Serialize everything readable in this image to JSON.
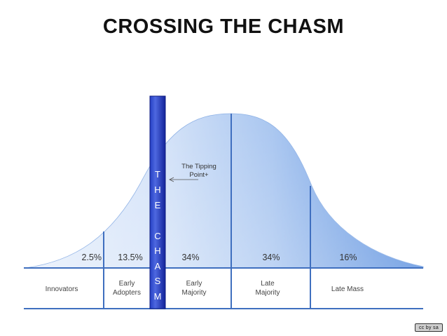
{
  "title": "CROSSING THE CHASM",
  "tipping_point": {
    "line1": "The Tipping",
    "line2": "Point+"
  },
  "chasm_letters": [
    "T",
    "H",
    "E",
    "C",
    "H",
    "A",
    "S",
    "M"
  ],
  "segments": [
    {
      "pct": "2.5%",
      "label_lines": [
        "Innovators"
      ]
    },
    {
      "pct": "13.5%",
      "label_lines": [
        "Early",
        "Adopters"
      ]
    },
    {
      "pct": "34%",
      "label_lines": [
        "Early",
        "Majority"
      ]
    },
    {
      "pct": "34%",
      "label_lines": [
        "Late",
        "Majority"
      ]
    },
    {
      "pct": "16%",
      "label_lines": [
        "Late Mass"
      ]
    }
  ],
  "license_badge": "cc by sa",
  "colors": {
    "curve_light": "#e4eefb",
    "curve_mid": "#a9c9f1",
    "curve_dark": "#4f88dd",
    "divider": "#3f6fbf",
    "chasm_dark": "#1a2fa6",
    "chasm_light": "#4d68e0"
  }
}
